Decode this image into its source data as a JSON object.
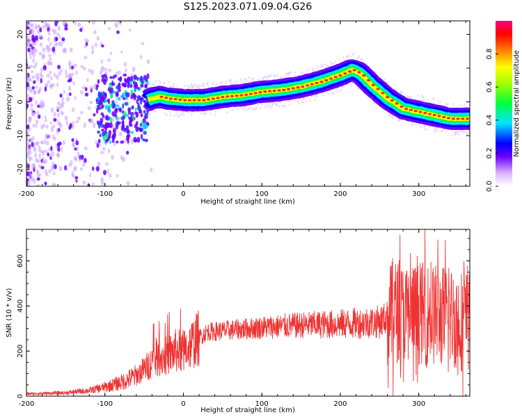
{
  "title": "S125.2023.071.09.04.G26",
  "chart_data": [
    {
      "type": "heatmap",
      "xlabel": "Height of straight line (km)",
      "ylabel": "Frequency (Hz)",
      "xlim": [
        -200,
        365
      ],
      "ylim": [
        -25,
        24
      ],
      "x_ticks": [
        -200,
        -100,
        0,
        100,
        200,
        300
      ],
      "y_ticks": [
        -20,
        -10,
        0,
        10,
        20
      ],
      "colorbar": {
        "label": "Normalized spectral amplitude",
        "range": [
          0,
          1
        ],
        "ticks": [
          0.0,
          0.2,
          0.4,
          0.6,
          0.8
        ],
        "colors": [
          "#ffffff",
          "#6a00ff",
          "#0000ff",
          "#00ffff",
          "#00ff00",
          "#ffff00",
          "#ff8000",
          "#ff0000",
          "#ff0080"
        ]
      },
      "ridge": {
        "x": [
          -50,
          -40,
          -30,
          -20,
          0,
          25,
          50,
          75,
          100,
          125,
          150,
          175,
          200,
          215,
          225,
          240,
          260,
          280,
          300,
          320,
          340,
          365
        ],
        "y": [
          0,
          1,
          1.5,
          1,
          0.5,
          0.5,
          1.5,
          2,
          3,
          3.5,
          4.5,
          6,
          8,
          9.5,
          8.5,
          5,
          1,
          -2,
          -3,
          -4,
          -5,
          -5
        ]
      }
    },
    {
      "type": "line",
      "xlabel": "Height of straight line (km)",
      "ylabel": "SNR (10 * v/v)",
      "xlim": [
        -200,
        365
      ],
      "ylim": [
        0,
        740
      ],
      "x_ticks": [
        -200,
        -100,
        0,
        100,
        200,
        300
      ],
      "y_ticks": [
        0,
        200,
        400,
        600
      ],
      "color": "#ee3333",
      "envelope": {
        "x": [
          -200,
          -150,
          -120,
          -100,
          -80,
          -60,
          -50,
          -40,
          -30,
          -20,
          -10,
          0,
          10,
          20,
          30,
          50,
          100,
          150,
          200,
          250,
          260,
          270,
          280,
          300,
          320,
          340,
          365
        ],
        "y": [
          10,
          15,
          25,
          40,
          60,
          90,
          120,
          150,
          170,
          180,
          200,
          200,
          230,
          260,
          285,
          290,
          305,
          315,
          320,
          330,
          350,
          380,
          360,
          370,
          360,
          350,
          330
        ]
      }
    }
  ]
}
